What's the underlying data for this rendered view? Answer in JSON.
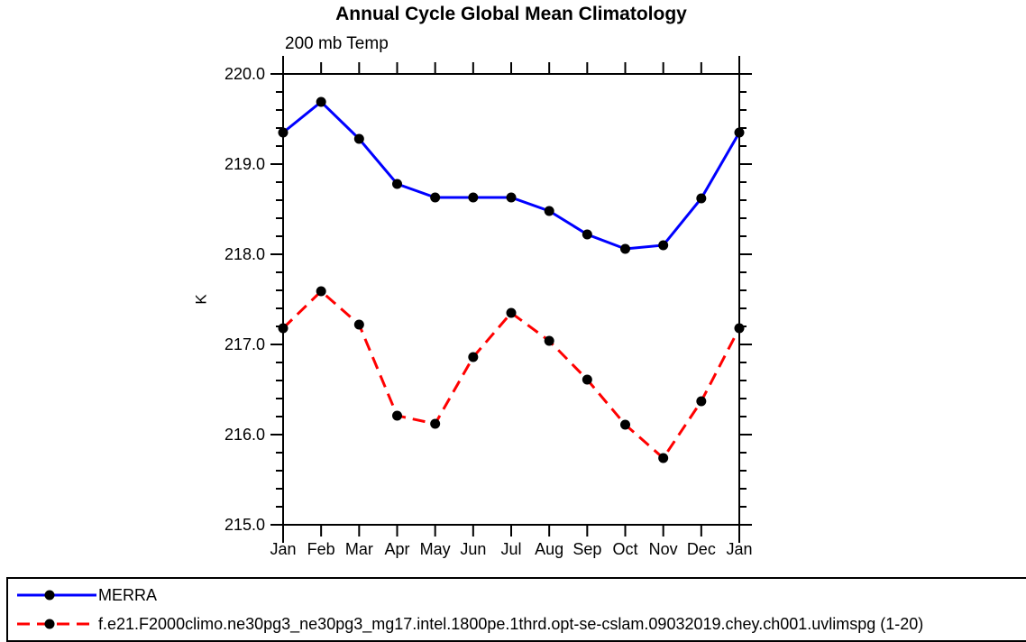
{
  "title": "Annual Cycle Global Mean Climatology",
  "subtitle": "200 mb Temp",
  "ylabel": "K",
  "chart_data": {
    "type": "line",
    "categories": [
      "Jan",
      "Feb",
      "Mar",
      "Apr",
      "May",
      "Jun",
      "Jul",
      "Aug",
      "Sep",
      "Oct",
      "Nov",
      "Dec",
      "Jan"
    ],
    "series": [
      {
        "name": "MERRA",
        "color": "#0000ff",
        "line_style": "solid",
        "marker": "circle",
        "marker_color": "#000000",
        "values": [
          219.35,
          219.69,
          219.28,
          218.78,
          218.63,
          218.63,
          218.63,
          218.48,
          218.22,
          218.06,
          218.1,
          218.62,
          219.35
        ]
      },
      {
        "name": "f.e21.F2000climo.ne30pg3_ne30pg3_mg17.intel.1800pe.1thrd.opt-se-cslam.09032019.chey.ch001.uvlimspg (1-20)",
        "color": "#ff0000",
        "line_style": "dashed",
        "marker": "circle",
        "marker_color": "#000000",
        "values": [
          217.18,
          217.59,
          217.22,
          216.21,
          216.12,
          216.86,
          217.35,
          217.04,
          216.61,
          216.11,
          215.74,
          216.37,
          217.18
        ]
      }
    ],
    "ylim": [
      215.0,
      220.0
    ],
    "ytick_major_step": 1.0,
    "ytick_minor_step": 0.2,
    "ytick_labels": [
      "215.0",
      "216.0",
      "217.0",
      "218.0",
      "219.0",
      "220.0"
    ],
    "xlabel": "",
    "ylabel": "K",
    "grid": false,
    "legend_position": "bottom"
  }
}
